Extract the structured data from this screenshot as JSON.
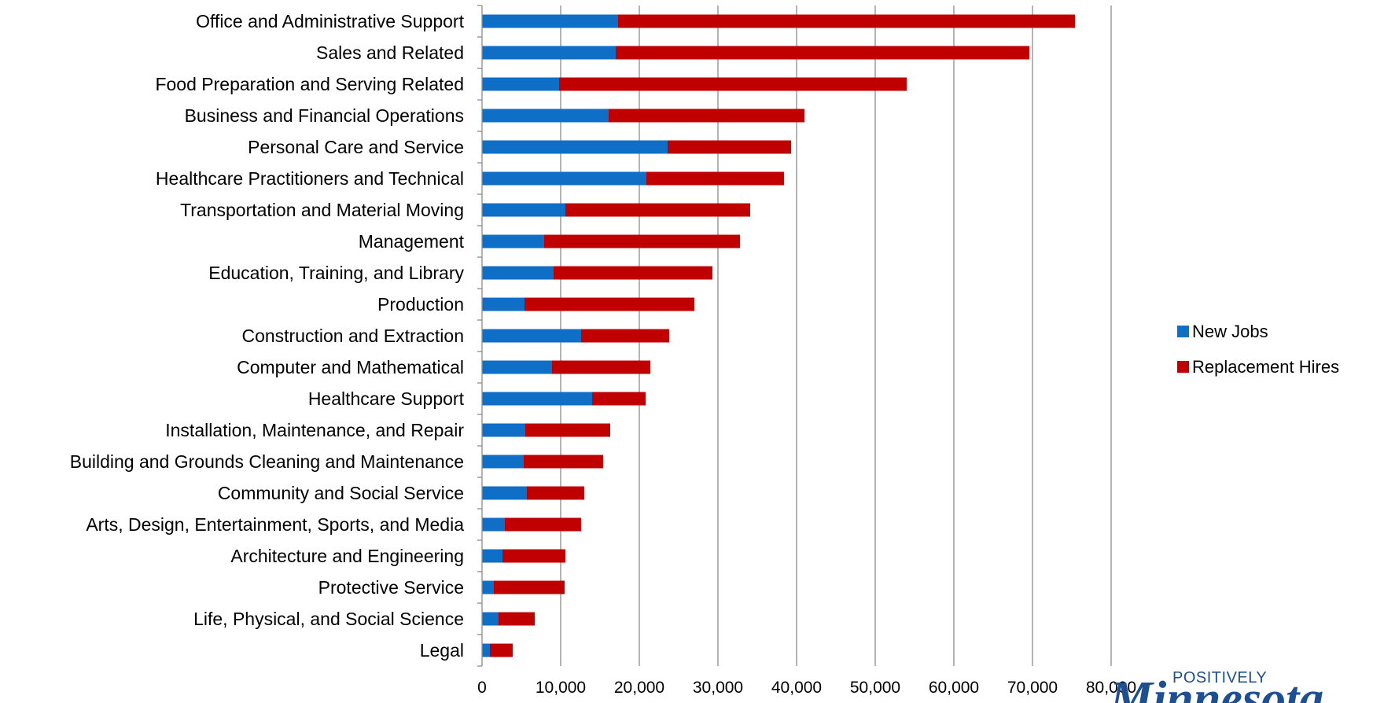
{
  "chart_data": {
    "type": "bar",
    "orientation": "horizontal",
    "stacked": true,
    "title": "",
    "xlabel": "",
    "ylabel": "",
    "xlim": [
      0,
      80000
    ],
    "x_ticks": [
      0,
      10000,
      20000,
      30000,
      40000,
      50000,
      60000,
      70000,
      80000
    ],
    "x_tick_labels": [
      "0",
      "10,000",
      "20,000",
      "30,000",
      "40,000",
      "50,000",
      "60,000",
      "70,000",
      "80,000"
    ],
    "grid": "vertical",
    "legend_position": "right",
    "categories": [
      "Office and Administrative Support",
      "Sales and Related",
      "Food Preparation and Serving Related",
      "Business and Financial Operations",
      "Personal Care and Service",
      "Healthcare Practitioners and Technical",
      "Transportation and Material Moving",
      "Management",
      "Education, Training, and Library",
      "Production",
      "Construction and Extraction",
      "Computer and Mathematical",
      "Healthcare Support",
      "Installation, Maintenance, and Repair",
      "Building and Grounds Cleaning and Maintenance",
      "Community and Social Service",
      "Arts, Design, Entertainment, Sports, and Media",
      "Architecture and Engineering",
      "Protective Service",
      "Life, Physical, and Social Science",
      "Legal"
    ],
    "series": [
      {
        "name": "New Jobs",
        "color": "#0f6fc6",
        "values": [
          17300,
          17000,
          9800,
          16100,
          23600,
          20900,
          10600,
          7900,
          9100,
          5400,
          12600,
          8900,
          14000,
          5500,
          5300,
          5700,
          2900,
          2600,
          1500,
          2100,
          1000
        ]
      },
      {
        "name": "Replacement Hires",
        "color": "#c00000",
        "values": [
          58100,
          52600,
          44200,
          24900,
          15700,
          17500,
          23500,
          24900,
          20200,
          21600,
          11200,
          12500,
          6800,
          10800,
          10100,
          7300,
          9700,
          8000,
          9000,
          4600,
          2900
        ]
      }
    ]
  },
  "logo": {
    "top_text": "POSITIVELY",
    "mark_text": "Minnesota"
  }
}
